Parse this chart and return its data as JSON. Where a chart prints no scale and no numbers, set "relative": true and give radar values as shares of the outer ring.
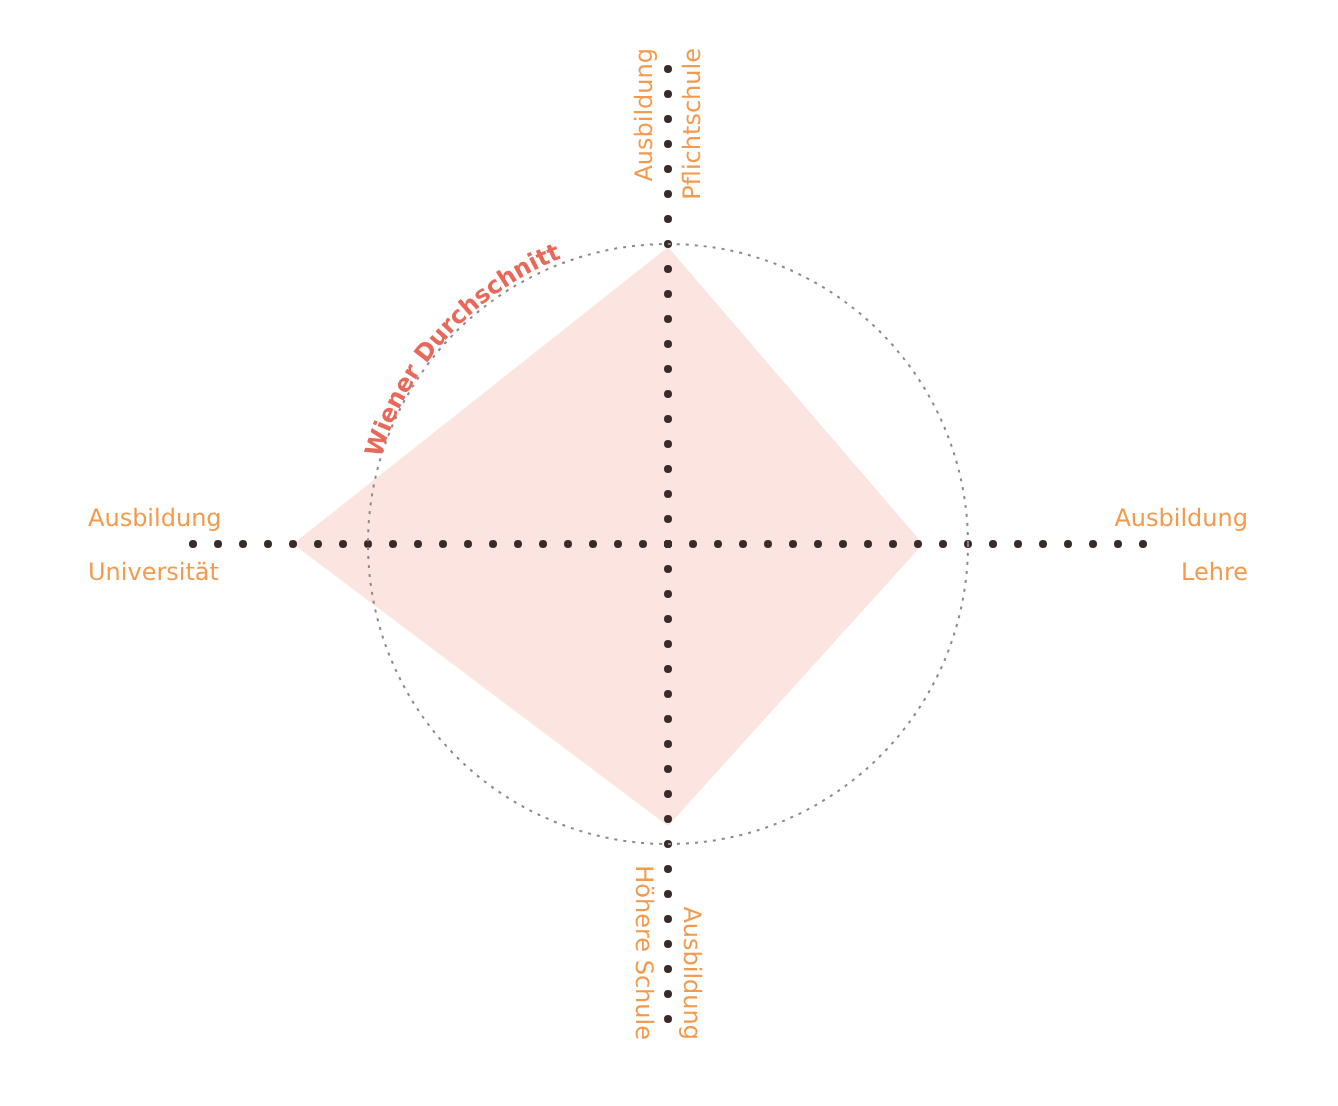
{
  "chart_data": {
    "type": "radar",
    "relative": true,
    "categories": [
      "Ausbildung Pflichtschule",
      "Ausbildung Lehre",
      "Ausbildung Höhere Schule",
      "Ausbildung Universität"
    ],
    "series": [
      {
        "color": "#fce4e1",
        "values": [
          0.99,
          0.85,
          0.94,
          1.25
        ]
      }
    ],
    "annotations": [
      "Wiener Durchschnitt"
    ]
  }
}
